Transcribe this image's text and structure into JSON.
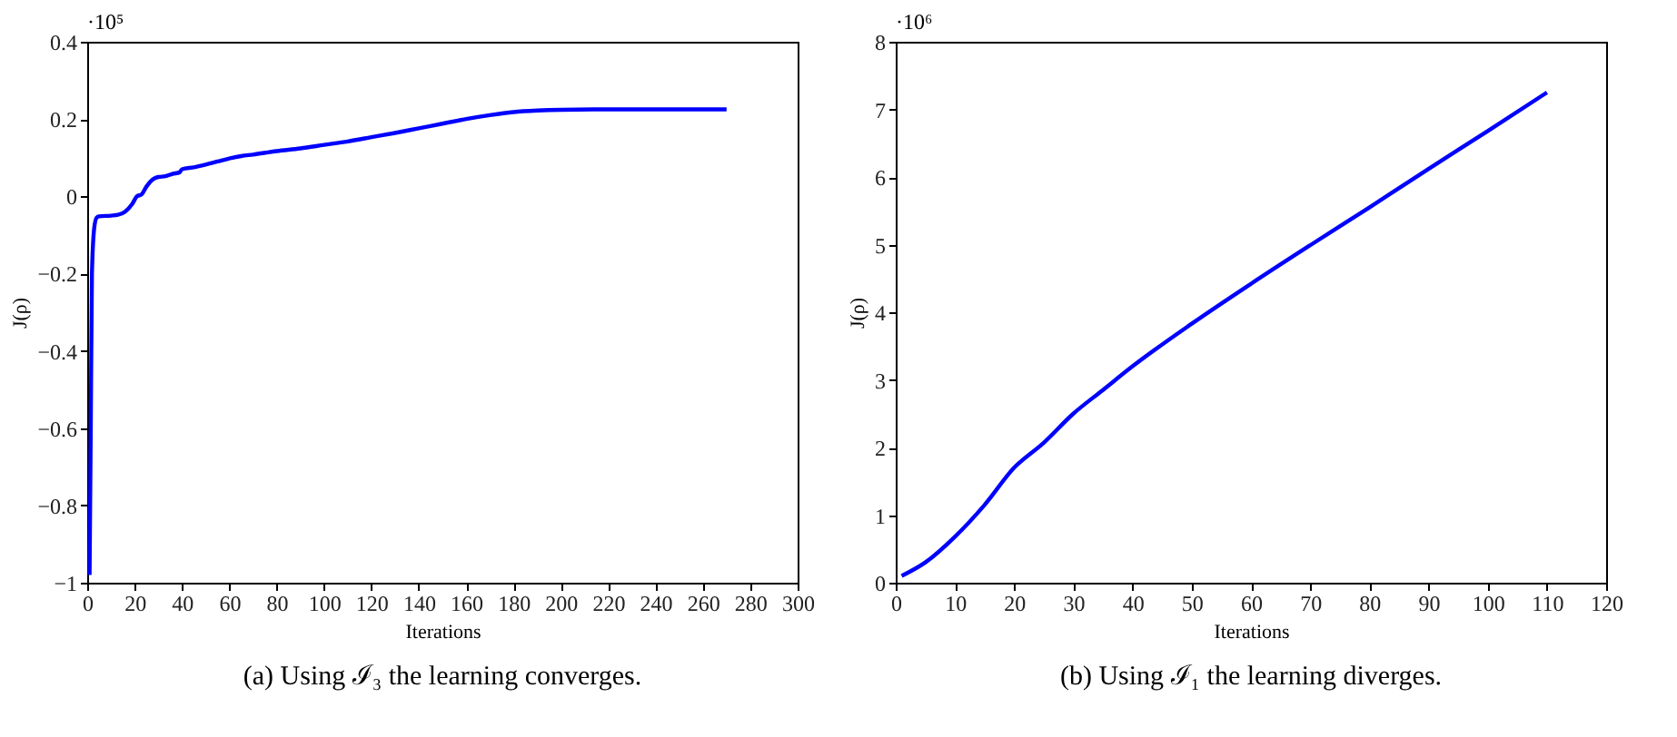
{
  "chart_data": [
    {
      "type": "line",
      "title": "(a) Using ℐ₃ the learning converges.",
      "xlabel": "Iterations",
      "ylabel": "J(ρ)",
      "annotations": [
        "·10⁵"
      ],
      "xlim": [
        0,
        300
      ],
      "xticks": [
        0,
        20,
        40,
        60,
        80,
        100,
        120,
        140,
        160,
        180,
        200,
        220,
        240,
        260,
        280,
        300
      ],
      "ylim": [
        -1,
        0.4
      ],
      "yticks": [
        {
          "value": -1,
          "label": "−1"
        },
        {
          "value": -0.8,
          "label": "−0.8"
        },
        {
          "value": -0.6,
          "label": "−0.6"
        },
        {
          "value": -0.4,
          "label": "−0.4"
        },
        {
          "value": -0.2,
          "label": "−0.2"
        },
        0,
        0.2,
        0.4
      ],
      "grid": false,
      "legend": false,
      "series": [
        {
          "color": "#0000ff",
          "x": [
            1,
            1.5,
            2,
            3,
            4,
            5,
            10,
            13,
            16,
            19,
            21,
            23,
            25,
            28,
            30,
            33,
            36,
            39,
            40,
            45,
            50,
            55,
            60,
            65,
            70,
            80,
            90,
            100,
            110,
            120,
            130,
            140,
            150,
            160,
            170,
            180,
            190,
            200,
            220,
            250,
            270
          ],
          "values": [
            -0.98,
            -0.6,
            -0.2,
            -0.08,
            -0.055,
            -0.052,
            -0.05,
            -0.048,
            -0.04,
            -0.02,
            0,
            0.005,
            0.025,
            0.045,
            0.05,
            0.052,
            0.058,
            0.062,
            0.07,
            0.075,
            0.082,
            0.09,
            0.098,
            0.104,
            0.108,
            0.117,
            0.124,
            0.133,
            0.142,
            0.153,
            0.164,
            0.176,
            0.188,
            0.2,
            0.21,
            0.218,
            0.222,
            0.224,
            0.225,
            0.225,
            0.225
          ]
        }
      ]
    },
    {
      "type": "line",
      "title": "(b) Using ℐ₁ the learning diverges.",
      "xlabel": "Iterations",
      "ylabel": "J(ρ)",
      "annotations": [
        "·10⁶"
      ],
      "xlim": [
        0,
        120
      ],
      "xticks": [
        0,
        10,
        20,
        30,
        40,
        50,
        60,
        70,
        80,
        90,
        100,
        110,
        120
      ],
      "ylim": [
        0,
        8
      ],
      "yticks": [
        0,
        1,
        2,
        3,
        4,
        5,
        6,
        7,
        8
      ],
      "grid": false,
      "legend": false,
      "series": [
        {
          "color": "#0000ff",
          "x": [
            1,
            5,
            10,
            15,
            20,
            25,
            30,
            35,
            40,
            50,
            60,
            70,
            80,
            90,
            100,
            110
          ],
          "values": [
            0.1,
            0.3,
            0.68,
            1.15,
            1.7,
            2.07,
            2.5,
            2.85,
            3.2,
            3.83,
            4.42,
            4.99,
            5.55,
            6.12,
            6.68,
            7.25
          ]
        }
      ]
    }
  ]
}
